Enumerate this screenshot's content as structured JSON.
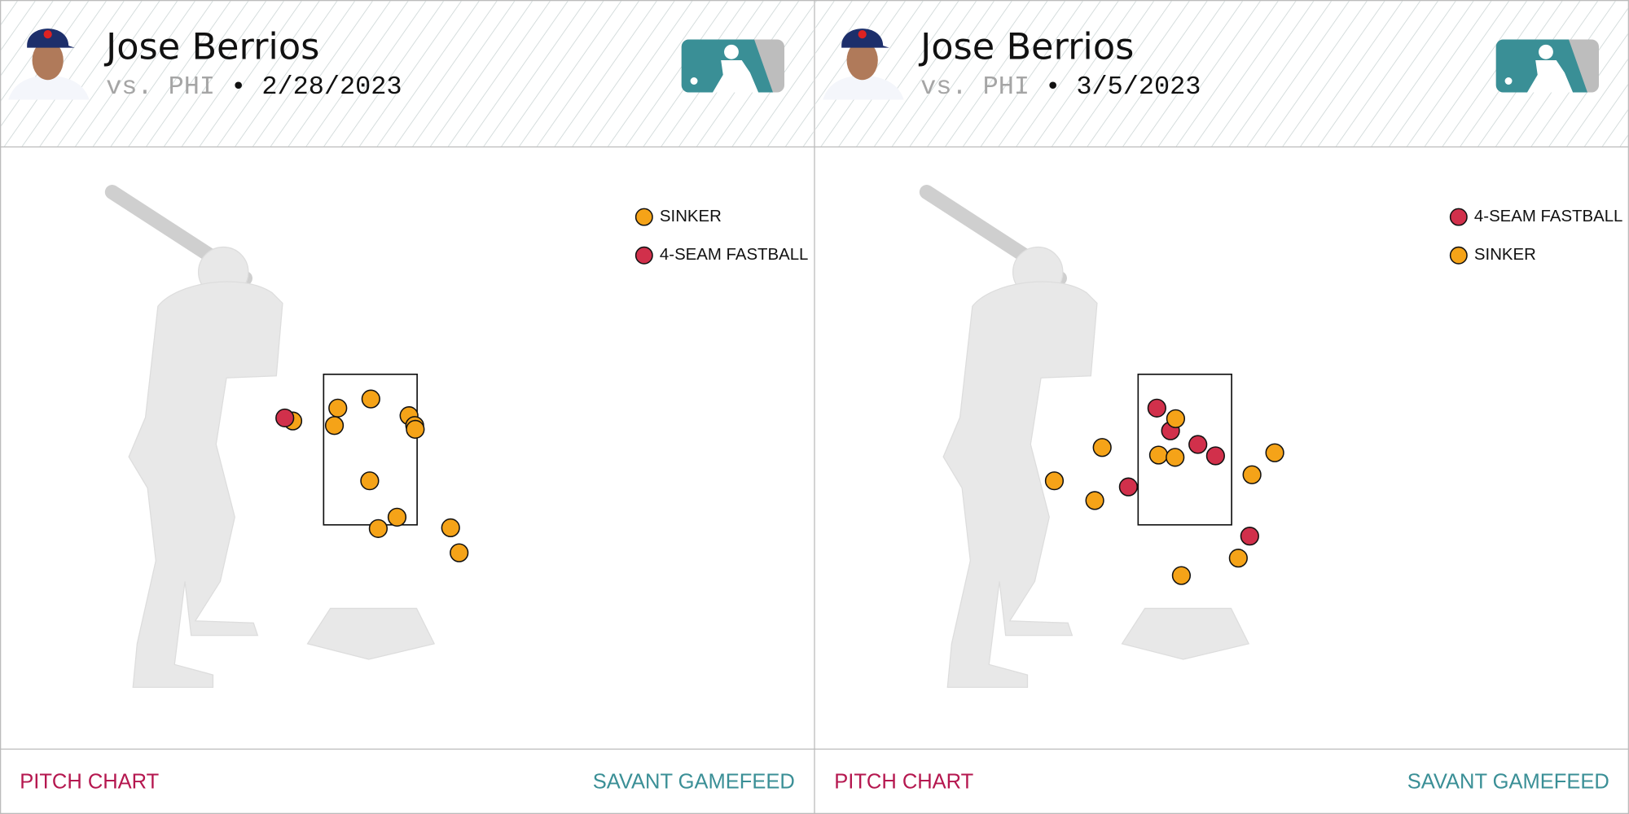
{
  "panels": [
    {
      "player": "Jose Berrios",
      "opponent": "vs. PHI",
      "separator": "•",
      "date": "2/28/2023",
      "footer_left": "PITCH CHART",
      "footer_right": "SAVANT GAMEFEED"
    },
    {
      "player": "Jose Berrios",
      "opponent": "vs. PHI",
      "separator": "•",
      "date": "3/5/2023",
      "footer_left": "PITCH CHART",
      "footer_right": "SAVANT GAMEFEED"
    }
  ],
  "chart_data": [
    {
      "type": "scatter",
      "xlim": [
        -6.5,
        7.78
      ],
      "ylim": [
        -1.43,
        6.49
      ],
      "series": [
        {
          "name": "SINKER",
          "color": "#f5a318",
          "x": [
            -0.57,
            0.01,
            -0.63,
            -1.36,
            0.68,
            0.78,
            0.79,
            -0.01,
            0.47,
            0.14,
            1.41,
            1.56
          ],
          "values": [
            3.05,
            3.17,
            2.82,
            2.88,
            2.95,
            2.82,
            2.77,
            2.09,
            1.61,
            1.46,
            1.47,
            1.14
          ]
        },
        {
          "name": "4-SEAM FASTBALL",
          "color": "#d1304b",
          "x": [
            -1.5
          ],
          "values": [
            2.92
          ]
        }
      ]
    },
    {
      "type": "scatter",
      "xlim": [
        -6.5,
        7.78
      ],
      "ylim": [
        -1.43,
        6.49
      ],
      "series": [
        {
          "name": "4-SEAM FASTBALL",
          "color": "#d1304b",
          "x": [
            -0.49,
            -0.25,
            0.23,
            0.54,
            -0.99,
            1.14
          ],
          "values": [
            3.05,
            2.75,
            2.57,
            2.42,
            2.01,
            1.36
          ]
        },
        {
          "name": "SINKER",
          "color": "#f5a318",
          "x": [
            -0.16,
            -0.46,
            -0.17,
            -1.45,
            -2.29,
            -1.58,
            1.18,
            1.58,
            0.94,
            -0.06
          ],
          "values": [
            2.91,
            2.43,
            2.4,
            2.53,
            2.09,
            1.83,
            2.17,
            2.46,
            1.07,
            0.84
          ]
        }
      ]
    }
  ]
}
